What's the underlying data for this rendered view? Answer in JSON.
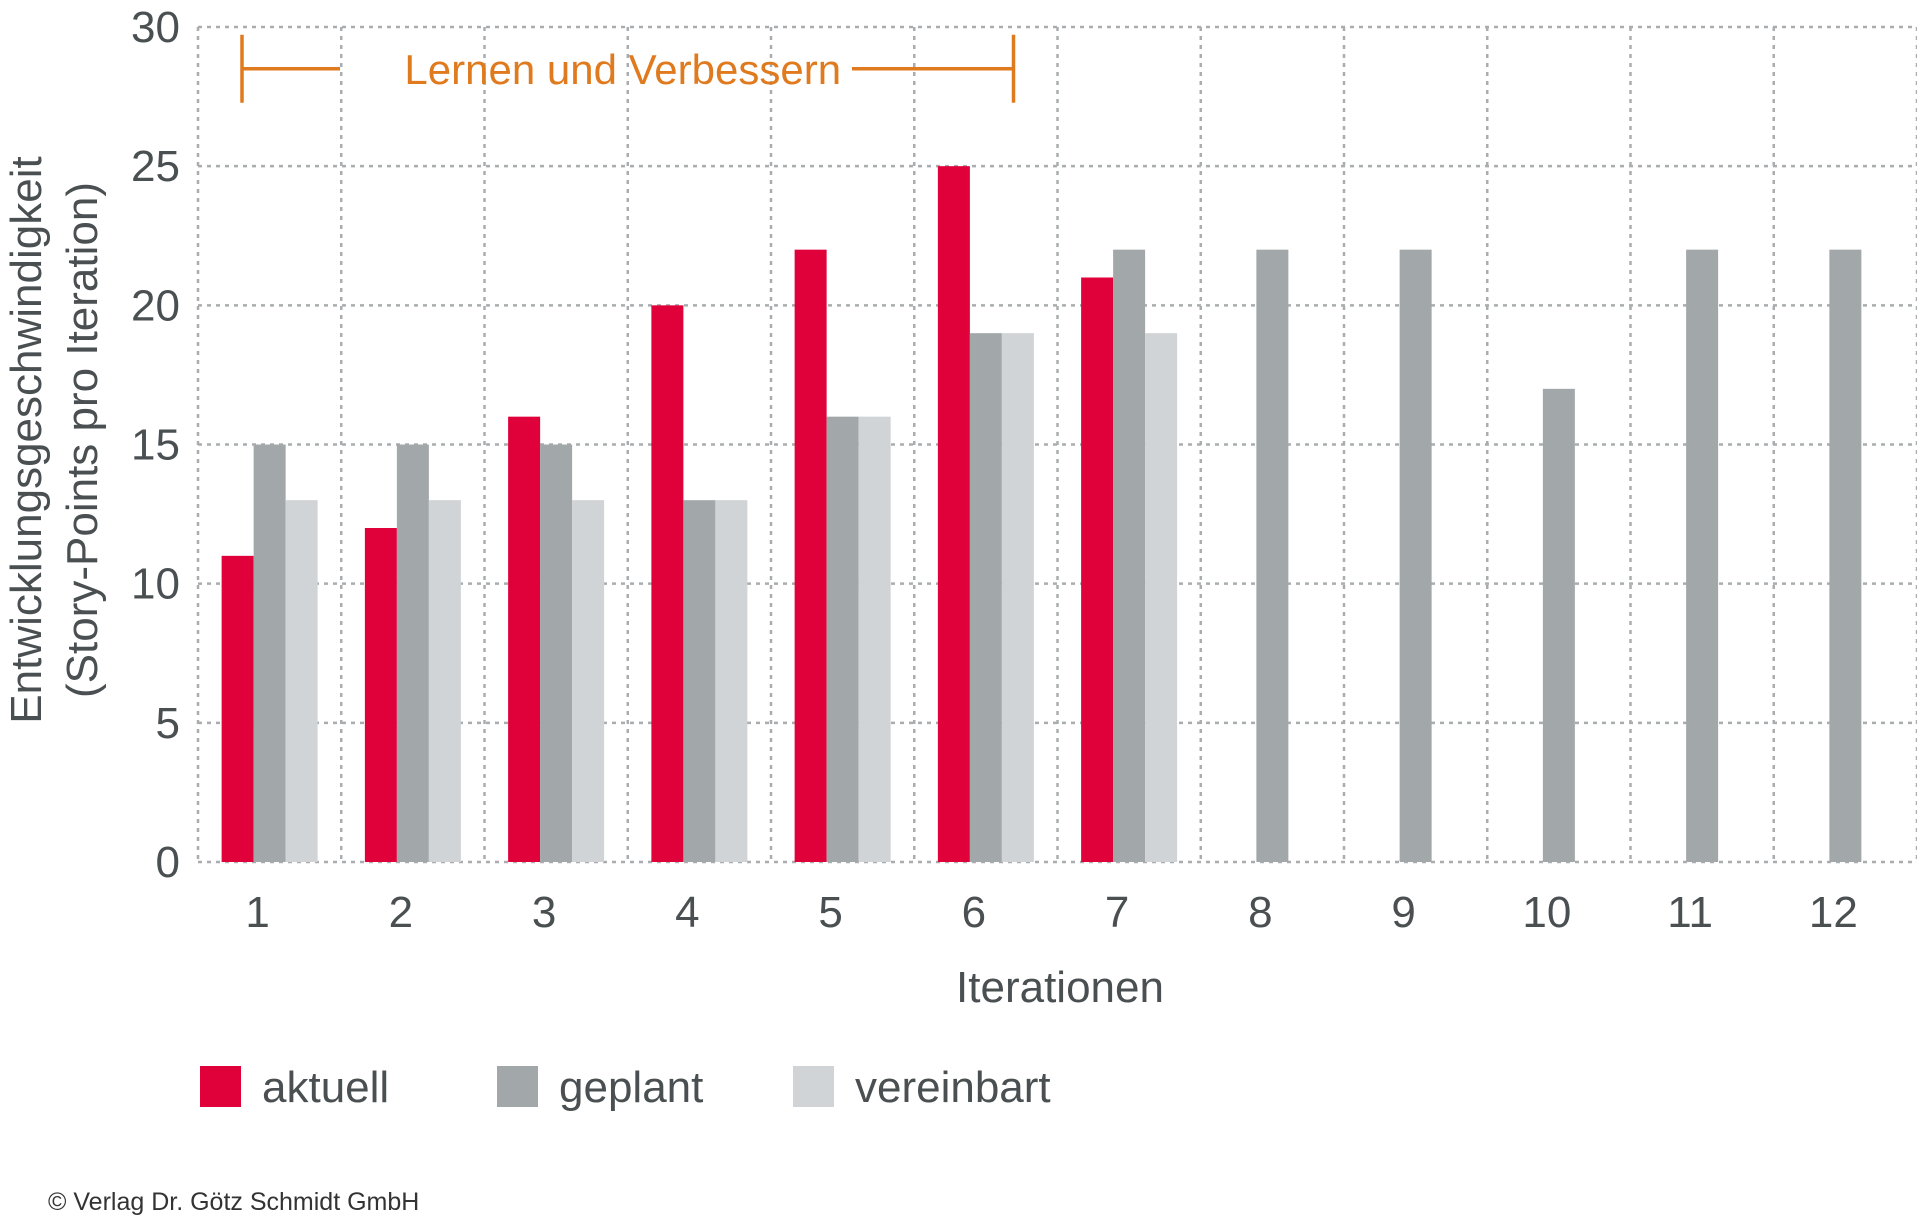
{
  "chart_data": {
    "type": "bar",
    "categories": [
      "1",
      "2",
      "3",
      "4",
      "5",
      "6",
      "7",
      "8",
      "9",
      "10",
      "11",
      "12"
    ],
    "series": [
      {
        "name": "aktuell",
        "color": "#e0003a",
        "values": [
          11,
          12,
          16,
          20,
          22,
          25,
          21,
          null,
          null,
          null,
          null,
          null
        ]
      },
      {
        "name": "geplant",
        "color": "#a2a8aa",
        "values": [
          15,
          15,
          15,
          13,
          16,
          19,
          22,
          22,
          22,
          17,
          22,
          22
        ]
      },
      {
        "name": "vereinbart",
        "color": "#d0d4d6",
        "values": [
          13,
          13,
          13,
          13,
          16,
          19,
          19,
          null,
          null,
          null,
          null,
          null
        ]
      }
    ],
    "xlabel": "Iterationen",
    "ylabel_line1": "Entwicklungsgeschwindigkeit",
    "ylabel_line2": "(Story-Points pro Iteration)",
    "ylim": [
      0,
      30
    ],
    "yticks": [
      0,
      5,
      10,
      15,
      20,
      25,
      30
    ],
    "grid": true,
    "legend_position": "bottom-left",
    "annotation": {
      "text": "Lernen und Verbessern",
      "from_category": "1",
      "to_category": "6",
      "y": 28.5,
      "color": "#e07a1e"
    }
  },
  "copyright": "© Verlag Dr. Götz Schmidt GmbH"
}
